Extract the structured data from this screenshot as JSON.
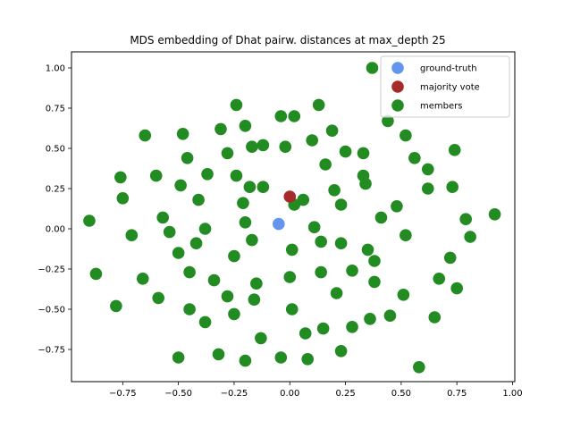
{
  "chart_data": {
    "type": "scatter",
    "title": "MDS embedding of Dhat pairw. distances at max_depth 25",
    "xlabel": "",
    "ylabel": "",
    "xlim": [
      -0.98,
      1.01
    ],
    "ylim": [
      -0.95,
      1.1
    ],
    "xticks": [
      -0.75,
      -0.5,
      -0.25,
      0.0,
      0.25,
      0.5,
      0.75,
      1.0
    ],
    "xtick_labels": [
      "−0.75",
      "−0.50",
      "−0.25",
      "0.00",
      "0.25",
      "0.50",
      "0.75",
      "1.00"
    ],
    "yticks": [
      -0.75,
      -0.5,
      -0.25,
      0.0,
      0.25,
      0.5,
      0.75,
      1.0
    ],
    "ytick_labels": [
      "−0.75",
      "−0.50",
      "−0.25",
      "0.00",
      "0.25",
      "0.50",
      "0.75",
      "1.00"
    ],
    "grid": false,
    "legend_position": "top-right",
    "series": [
      {
        "name": "ground-truth",
        "color": "#6495ed",
        "points": [
          [
            -0.05,
            0.03
          ]
        ]
      },
      {
        "name": "majority vote",
        "color": "#a52a2a",
        "points": [
          [
            0.0,
            0.2
          ]
        ]
      },
      {
        "name": "members",
        "color": "#228b22",
        "points": [
          [
            0.37,
            1.0
          ],
          [
            -0.24,
            0.77
          ],
          [
            0.13,
            0.77
          ],
          [
            -0.04,
            0.7
          ],
          [
            0.02,
            0.7
          ],
          [
            -0.2,
            0.64
          ],
          [
            0.44,
            0.67
          ],
          [
            -0.31,
            0.62
          ],
          [
            0.19,
            0.61
          ],
          [
            -0.65,
            0.58
          ],
          [
            -0.48,
            0.59
          ],
          [
            0.52,
            0.58
          ],
          [
            -0.12,
            0.52
          ],
          [
            -0.17,
            0.51
          ],
          [
            -0.02,
            0.51
          ],
          [
            0.1,
            0.55
          ],
          [
            0.74,
            0.49
          ],
          [
            -0.28,
            0.47
          ],
          [
            -0.46,
            0.44
          ],
          [
            0.25,
            0.48
          ],
          [
            0.33,
            0.47
          ],
          [
            0.56,
            0.44
          ],
          [
            0.16,
            0.4
          ],
          [
            0.62,
            0.37
          ],
          [
            -0.76,
            0.32
          ],
          [
            -0.6,
            0.33
          ],
          [
            -0.37,
            0.34
          ],
          [
            -0.24,
            0.33
          ],
          [
            0.33,
            0.33
          ],
          [
            -0.49,
            0.27
          ],
          [
            -0.18,
            0.26
          ],
          [
            -0.12,
            0.26
          ],
          [
            0.34,
            0.28
          ],
          [
            0.62,
            0.25
          ],
          [
            0.73,
            0.26
          ],
          [
            -0.75,
            0.19
          ],
          [
            -0.41,
            0.18
          ],
          [
            0.06,
            0.18
          ],
          [
            0.2,
            0.24
          ],
          [
            -0.21,
            0.16
          ],
          [
            0.02,
            0.15
          ],
          [
            0.23,
            0.15
          ],
          [
            0.48,
            0.14
          ],
          [
            -0.57,
            0.07
          ],
          [
            -0.2,
            0.04
          ],
          [
            0.41,
            0.07
          ],
          [
            0.79,
            0.06
          ],
          [
            -0.9,
            0.05
          ],
          [
            -0.38,
            0.0
          ],
          [
            0.11,
            0.01
          ],
          [
            -0.71,
            -0.04
          ],
          [
            -0.54,
            -0.02
          ],
          [
            0.52,
            -0.04
          ],
          [
            0.81,
            -0.05
          ],
          [
            -0.42,
            -0.09
          ],
          [
            -0.17,
            -0.07
          ],
          [
            0.14,
            -0.08
          ],
          [
            0.23,
            -0.09
          ],
          [
            0.01,
            -0.13
          ],
          [
            0.35,
            -0.13
          ],
          [
            -0.5,
            -0.15
          ],
          [
            -0.25,
            -0.17
          ],
          [
            0.38,
            -0.2
          ],
          [
            0.72,
            -0.18
          ],
          [
            -0.87,
            -0.28
          ],
          [
            -0.45,
            -0.27
          ],
          [
            0.14,
            -0.27
          ],
          [
            0.28,
            -0.26
          ],
          [
            -0.66,
            -0.31
          ],
          [
            -0.34,
            -0.32
          ],
          [
            -0.15,
            -0.34
          ],
          [
            0.0,
            -0.3
          ],
          [
            0.38,
            -0.33
          ],
          [
            0.67,
            -0.31
          ],
          [
            0.75,
            -0.37
          ],
          [
            -0.59,
            -0.43
          ],
          [
            -0.28,
            -0.42
          ],
          [
            -0.16,
            -0.44
          ],
          [
            0.21,
            -0.4
          ],
          [
            0.51,
            -0.41
          ],
          [
            -0.78,
            -0.48
          ],
          [
            -0.45,
            -0.5
          ],
          [
            -0.25,
            -0.53
          ],
          [
            0.01,
            -0.5
          ],
          [
            -0.38,
            -0.58
          ],
          [
            0.36,
            -0.56
          ],
          [
            0.45,
            -0.54
          ],
          [
            0.65,
            -0.55
          ],
          [
            0.15,
            -0.62
          ],
          [
            0.28,
            -0.61
          ],
          [
            -0.13,
            -0.68
          ],
          [
            0.07,
            -0.65
          ],
          [
            -0.32,
            -0.78
          ],
          [
            0.23,
            -0.76
          ],
          [
            -0.5,
            -0.8
          ],
          [
            -0.2,
            -0.82
          ],
          [
            -0.04,
            -0.8
          ],
          [
            0.08,
            -0.81
          ],
          [
            0.58,
            -0.86
          ],
          [
            0.92,
            0.09
          ]
        ]
      }
    ]
  }
}
